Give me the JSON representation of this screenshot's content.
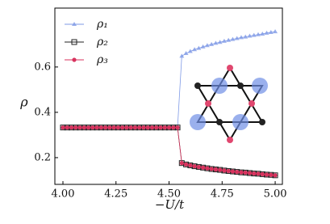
{
  "chart_data": {
    "type": "line",
    "x_label": "−U/t",
    "y_label": "ρ",
    "x": [
      4.0,
      4.02,
      4.04,
      4.06,
      4.08,
      4.1,
      4.12,
      4.14,
      4.16,
      4.18,
      4.2,
      4.22,
      4.24,
      4.26,
      4.28,
      4.3,
      4.32,
      4.34,
      4.36,
      4.38,
      4.4,
      4.42,
      4.44,
      4.46,
      4.48,
      4.5,
      4.52,
      4.54,
      4.56,
      4.58,
      4.6,
      4.62,
      4.64,
      4.66,
      4.68,
      4.7,
      4.72,
      4.74,
      4.76,
      4.78,
      4.8,
      4.82,
      4.84,
      4.86,
      4.88,
      4.9,
      4.92,
      4.94,
      4.96,
      4.98,
      5.0
    ],
    "series": [
      {
        "name": "ρ₁",
        "color": "#7f9ae6",
        "marker": "triangle",
        "values": [
          0.333,
          0.333,
          0.333,
          0.333,
          0.333,
          0.333,
          0.333,
          0.333,
          0.333,
          0.333,
          0.333,
          0.333,
          0.333,
          0.333,
          0.333,
          0.333,
          0.333,
          0.333,
          0.333,
          0.333,
          0.333,
          0.333,
          0.333,
          0.333,
          0.333,
          0.333,
          0.333,
          0.333,
          0.648,
          0.66,
          0.669,
          0.677,
          0.683,
          0.689,
          0.695,
          0.7,
          0.705,
          0.709,
          0.714,
          0.718,
          0.722,
          0.726,
          0.73,
          0.733,
          0.737,
          0.74,
          0.743,
          0.746,
          0.75,
          0.753,
          0.756
        ]
      },
      {
        "name": "ρ₂",
        "color": "#222222",
        "marker": "square",
        "values": [
          0.333,
          0.333,
          0.333,
          0.333,
          0.333,
          0.333,
          0.333,
          0.333,
          0.333,
          0.333,
          0.333,
          0.333,
          0.333,
          0.333,
          0.333,
          0.333,
          0.333,
          0.333,
          0.333,
          0.333,
          0.333,
          0.333,
          0.333,
          0.333,
          0.333,
          0.333,
          0.333,
          0.333,
          0.176,
          0.17,
          0.166,
          0.162,
          0.159,
          0.156,
          0.153,
          0.15,
          0.148,
          0.146,
          0.143,
          0.141,
          0.139,
          0.137,
          0.135,
          0.134,
          0.132,
          0.13,
          0.129,
          0.127,
          0.125,
          0.124,
          0.122
        ]
      },
      {
        "name": "ρ₃",
        "color": "#d8335e",
        "marker": "circle",
        "values": [
          0.333,
          0.333,
          0.333,
          0.333,
          0.333,
          0.333,
          0.333,
          0.333,
          0.333,
          0.333,
          0.333,
          0.333,
          0.333,
          0.333,
          0.333,
          0.333,
          0.333,
          0.333,
          0.333,
          0.333,
          0.333,
          0.333,
          0.333,
          0.333,
          0.333,
          0.333,
          0.333,
          0.333,
          0.176,
          0.17,
          0.166,
          0.162,
          0.159,
          0.156,
          0.153,
          0.15,
          0.148,
          0.146,
          0.143,
          0.141,
          0.139,
          0.137,
          0.135,
          0.134,
          0.132,
          0.13,
          0.129,
          0.127,
          0.125,
          0.124,
          0.122
        ]
      }
    ],
    "xlim": [
      3.962,
      5.034
    ],
    "ylim": [
      0.082,
      0.86
    ],
    "xticks": [
      {
        "value": 4.0,
        "label": "4.00"
      },
      {
        "value": 4.25,
        "label": "4.25"
      },
      {
        "value": 4.5,
        "label": "4.50"
      },
      {
        "value": 4.75,
        "label": "4.75"
      },
      {
        "value": 5.0,
        "label": "5.00"
      }
    ],
    "yticks": [
      0.2,
      0.4,
      0.6
    ],
    "legend": "upper left",
    "grid": false
  }
}
